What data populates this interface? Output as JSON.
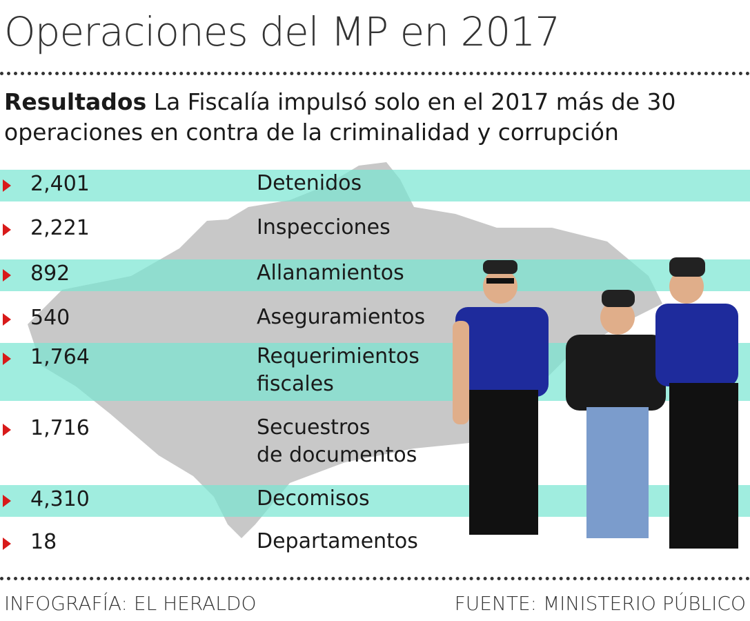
{
  "title": "Operaciones del MP en 2017",
  "subtitle": {
    "bold": "Resultados",
    "text": " La Fiscalía impulsó solo en el  2017 más de 30 operaciones en contra de la criminalidad y corrupción"
  },
  "rows": [
    {
      "value": "2,401",
      "label": "Detenidos"
    },
    {
      "value": "2,221",
      "label": "Inspecciones"
    },
    {
      "value": "892",
      "label": "Allanamientos"
    },
    {
      "value": "540",
      "label": "Aseguramientos"
    },
    {
      "value": "1,764",
      "label": "Requerimientos\nfiscales"
    },
    {
      "value": "1,716",
      "label": "Secuestros\nde documentos"
    },
    {
      "value": "4,310",
      "label": "Decomisos"
    },
    {
      "value": "18",
      "label": "Departamentos"
    }
  ],
  "footer": {
    "left": "INFOGRAFÍA: EL HERALDO",
    "right": "FUENTE: MINISTERIO PÚBLICO"
  },
  "colors": {
    "band": "#9eeee0",
    "arrow": "#d81a1a",
    "map": "#c8c8c8"
  }
}
